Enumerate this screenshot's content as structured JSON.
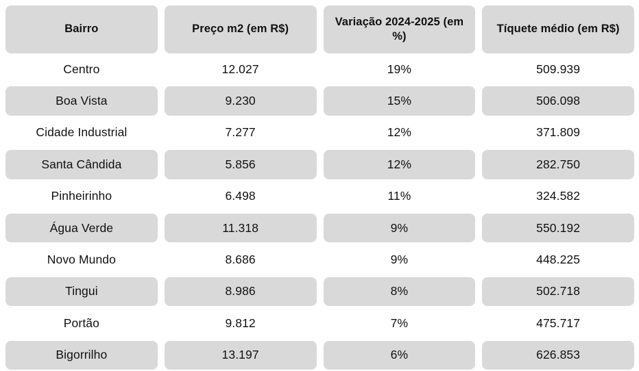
{
  "colors": {
    "cell_background": "#d9d9d9",
    "page_background": "#ffffff",
    "text": "#111111"
  },
  "table": {
    "headers": [
      "Bairro",
      "Preço m2 (em R$)",
      "Variação 2024-2025 (em %)",
      "Tíquete médio (em R$)"
    ],
    "rows": [
      [
        "Centro",
        "12.027",
        "19%",
        "509.939"
      ],
      [
        "Boa Vista",
        "9.230",
        "15%",
        "506.098"
      ],
      [
        "Cidade Industrial",
        "7.277",
        "12%",
        "371.809"
      ],
      [
        "Santa Cândida",
        "5.856",
        "12%",
        "282.750"
      ],
      [
        "Pinheirinho",
        "6.498",
        "11%",
        "324.582"
      ],
      [
        "Água Verde",
        "11.318",
        "9%",
        "550.192"
      ],
      [
        "Novo Mundo",
        "8.686",
        "9%",
        "448.225"
      ],
      [
        "Tingui",
        "8.986",
        "8%",
        "502.718"
      ],
      [
        "Portão",
        "9.812",
        "7%",
        "475.717"
      ],
      [
        "Bigorrilho",
        "13.197",
        "6%",
        "626.853"
      ]
    ]
  },
  "chart_data": {
    "type": "table",
    "title": "",
    "columns": [
      "Bairro",
      "Preço m2 (em R$)",
      "Variação 2024-2025 (em %)",
      "Tíquete médio (em R$)"
    ],
    "rows": [
      {
        "bairro": "Centro",
        "preco_m2": 12027,
        "variacao_2024_2025_pct": 19,
        "tiquete_medio": 509939
      },
      {
        "bairro": "Boa Vista",
        "preco_m2": 9230,
        "variacao_2024_2025_pct": 15,
        "tiquete_medio": 506098
      },
      {
        "bairro": "Cidade Industrial",
        "preco_m2": 7277,
        "variacao_2024_2025_pct": 12,
        "tiquete_medio": 371809
      },
      {
        "bairro": "Santa Cândida",
        "preco_m2": 5856,
        "variacao_2024_2025_pct": 12,
        "tiquete_medio": 282750
      },
      {
        "bairro": "Pinheirinho",
        "preco_m2": 6498,
        "variacao_2024_2025_pct": 11,
        "tiquete_medio": 324582
      },
      {
        "bairro": "Água Verde",
        "preco_m2": 11318,
        "variacao_2024_2025_pct": 9,
        "tiquete_medio": 550192
      },
      {
        "bairro": "Novo Mundo",
        "preco_m2": 8686,
        "variacao_2024_2025_pct": 9,
        "tiquete_medio": 448225
      },
      {
        "bairro": "Tingui",
        "preco_m2": 8986,
        "variacao_2024_2025_pct": 8,
        "tiquete_medio": 502718
      },
      {
        "bairro": "Portão",
        "preco_m2": 9812,
        "variacao_2024_2025_pct": 7,
        "tiquete_medio": 475717
      },
      {
        "bairro": "Bigorrilho",
        "preco_m2": 13197,
        "variacao_2024_2025_pct": 6,
        "tiquete_medio": 626853
      }
    ],
    "layout_hints": {
      "header_style": "gray rounded cells, bold text",
      "row_striping": "odd data rows (Boa Vista, Santa Cândida, Água Verde, Tingui, Bigorrilho) shaded gray per-cell pills",
      "number_format": "pt-BR, dot thousands separator"
    }
  }
}
